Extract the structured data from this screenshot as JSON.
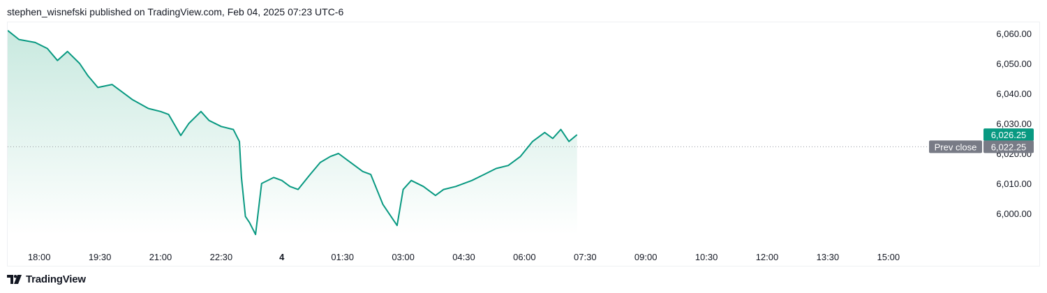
{
  "header": {
    "publish_text": "stephen_wisnefski published on TradingView.com, Feb 04, 2025 07:23 UTC-6"
  },
  "footer": {
    "brand": "TradingView",
    "logo_icon": "tradingview-logo-icon"
  },
  "colors": {
    "line": "#089981",
    "area_top": "#c8e9df",
    "area_bottom": "#ffffff",
    "last_price_bg": "#089981",
    "prev_close_bg": "#787b86",
    "dotted_line": "#9598a1"
  },
  "chart_data": {
    "type": "area",
    "ylim": [
      5990,
      6062
    ],
    "y_ticks": [
      "6,060.00",
      "6,050.00",
      "6,040.00",
      "6,030.00",
      "6,020.00",
      "6,010.00",
      "6,000.00"
    ],
    "y_tick_values": [
      6060,
      6050,
      6040,
      6030,
      6020,
      6010,
      6000
    ],
    "x_ticks": [
      {
        "label": "18:00",
        "bold": false
      },
      {
        "label": "19:30",
        "bold": false
      },
      {
        "label": "21:00",
        "bold": false
      },
      {
        "label": "22:30",
        "bold": false
      },
      {
        "label": "4",
        "bold": true
      },
      {
        "label": "01:30",
        "bold": false
      },
      {
        "label": "03:00",
        "bold": false
      },
      {
        "label": "04:30",
        "bold": false
      },
      {
        "label": "06:00",
        "bold": false
      },
      {
        "label": "07:30",
        "bold": false
      },
      {
        "label": "09:00",
        "bold": false
      },
      {
        "label": "10:30",
        "bold": false
      },
      {
        "label": "12:00",
        "bold": false
      },
      {
        "label": "13:30",
        "bold": false
      },
      {
        "label": "15:00",
        "bold": false
      }
    ],
    "x_tick_hours": [
      18,
      19.5,
      21,
      22.5,
      24,
      25.5,
      27,
      28.5,
      30,
      31.5,
      33,
      34.5,
      36,
      37.5,
      39
    ],
    "xlim_hours": [
      17.22,
      40.35
    ],
    "series": [
      {
        "x": [
          17.22,
          17.5,
          17.9,
          18.2,
          18.45,
          18.7,
          19.0,
          19.2,
          19.45,
          19.8,
          20.0,
          20.3,
          20.7,
          21.0,
          21.2,
          21.5,
          21.7,
          22.0,
          22.2,
          22.5,
          22.8,
          22.95,
          23.0,
          23.1,
          23.2,
          23.35,
          23.5,
          23.8,
          24.0,
          24.2,
          24.4,
          24.7,
          24.95,
          25.2,
          25.4,
          25.7,
          26.0,
          26.2,
          26.5,
          26.7,
          26.85,
          27.0,
          27.2,
          27.5,
          27.8,
          28.0,
          28.3,
          28.7,
          29.0,
          29.3,
          29.6,
          29.9,
          30.2,
          30.5,
          30.7,
          30.9,
          31.1,
          31.3
        ],
        "y": [
          6061,
          6058,
          6057,
          6055,
          6051,
          6054,
          6050,
          6046,
          6042,
          6043,
          6041,
          6038,
          6035,
          6034,
          6033,
          6026,
          6030,
          6034,
          6031,
          6029,
          6028,
          6024,
          6012,
          5999,
          5997,
          5993,
          6010,
          6012,
          6011,
          6009,
          6008,
          6013,
          6017,
          6019,
          6020,
          6017,
          6014,
          6013,
          6003,
          5999,
          5996,
          6008,
          6011,
          6009,
          6006,
          6008,
          6009,
          6011,
          6013,
          6015,
          6016,
          6019,
          6024,
          6027,
          6025,
          6028,
          6024,
          6026.25
        ]
      }
    ],
    "last_price": {
      "value": 6026.25,
      "label": "6,026.25"
    },
    "prev_close": {
      "value": 6022.25,
      "label": "6,022.25",
      "text": "Prev close"
    }
  }
}
